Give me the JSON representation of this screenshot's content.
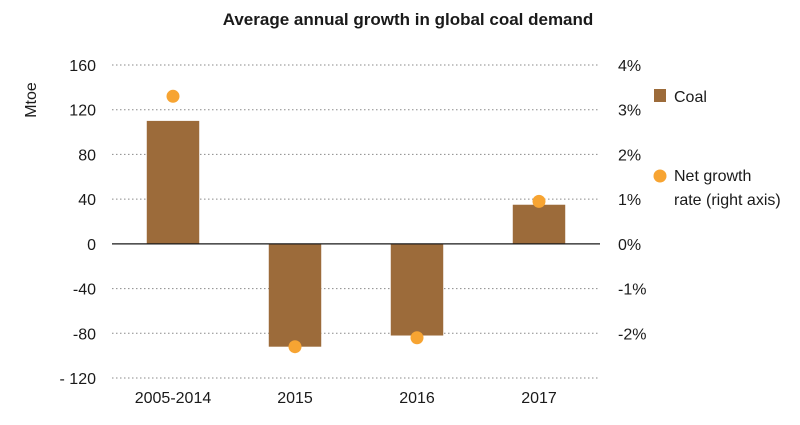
{
  "chart_data": {
    "type": "bar",
    "title": "Average annual growth in global coal demand",
    "categories": [
      "2005-2014",
      "2015",
      "2016",
      "2017"
    ],
    "ylabel": "Mtoe",
    "ylim": [
      -120,
      160
    ],
    "yticks": [
      160,
      120,
      80,
      40,
      0,
      -40,
      -80,
      -120
    ],
    "ytick_labels": [
      "160",
      "120",
      "80",
      "40",
      "0",
      "-40",
      "-80",
      "- 120"
    ],
    "y2lim": [
      -3,
      4
    ],
    "y2ticks": [
      4,
      3,
      2,
      1,
      0,
      -1,
      -2
    ],
    "y2tick_labels": [
      "4%",
      "3%",
      "2%",
      "1%",
      "0%",
      "-1%",
      "-2%"
    ],
    "grid": true,
    "legend_position": "right",
    "series": [
      {
        "name": "Coal",
        "kind": "bar",
        "axis": "left",
        "color": "#9c6b3a",
        "values": [
          110,
          -92,
          -82,
          35
        ]
      },
      {
        "name": "Net growth rate (right axis)",
        "legend_lines": [
          "Net growth",
          "rate (right axis)"
        ],
        "kind": "marker",
        "axis": "right",
        "color": "#f7a432",
        "values": [
          3.3,
          -2.3,
          -2.1,
          0.95
        ]
      }
    ]
  }
}
